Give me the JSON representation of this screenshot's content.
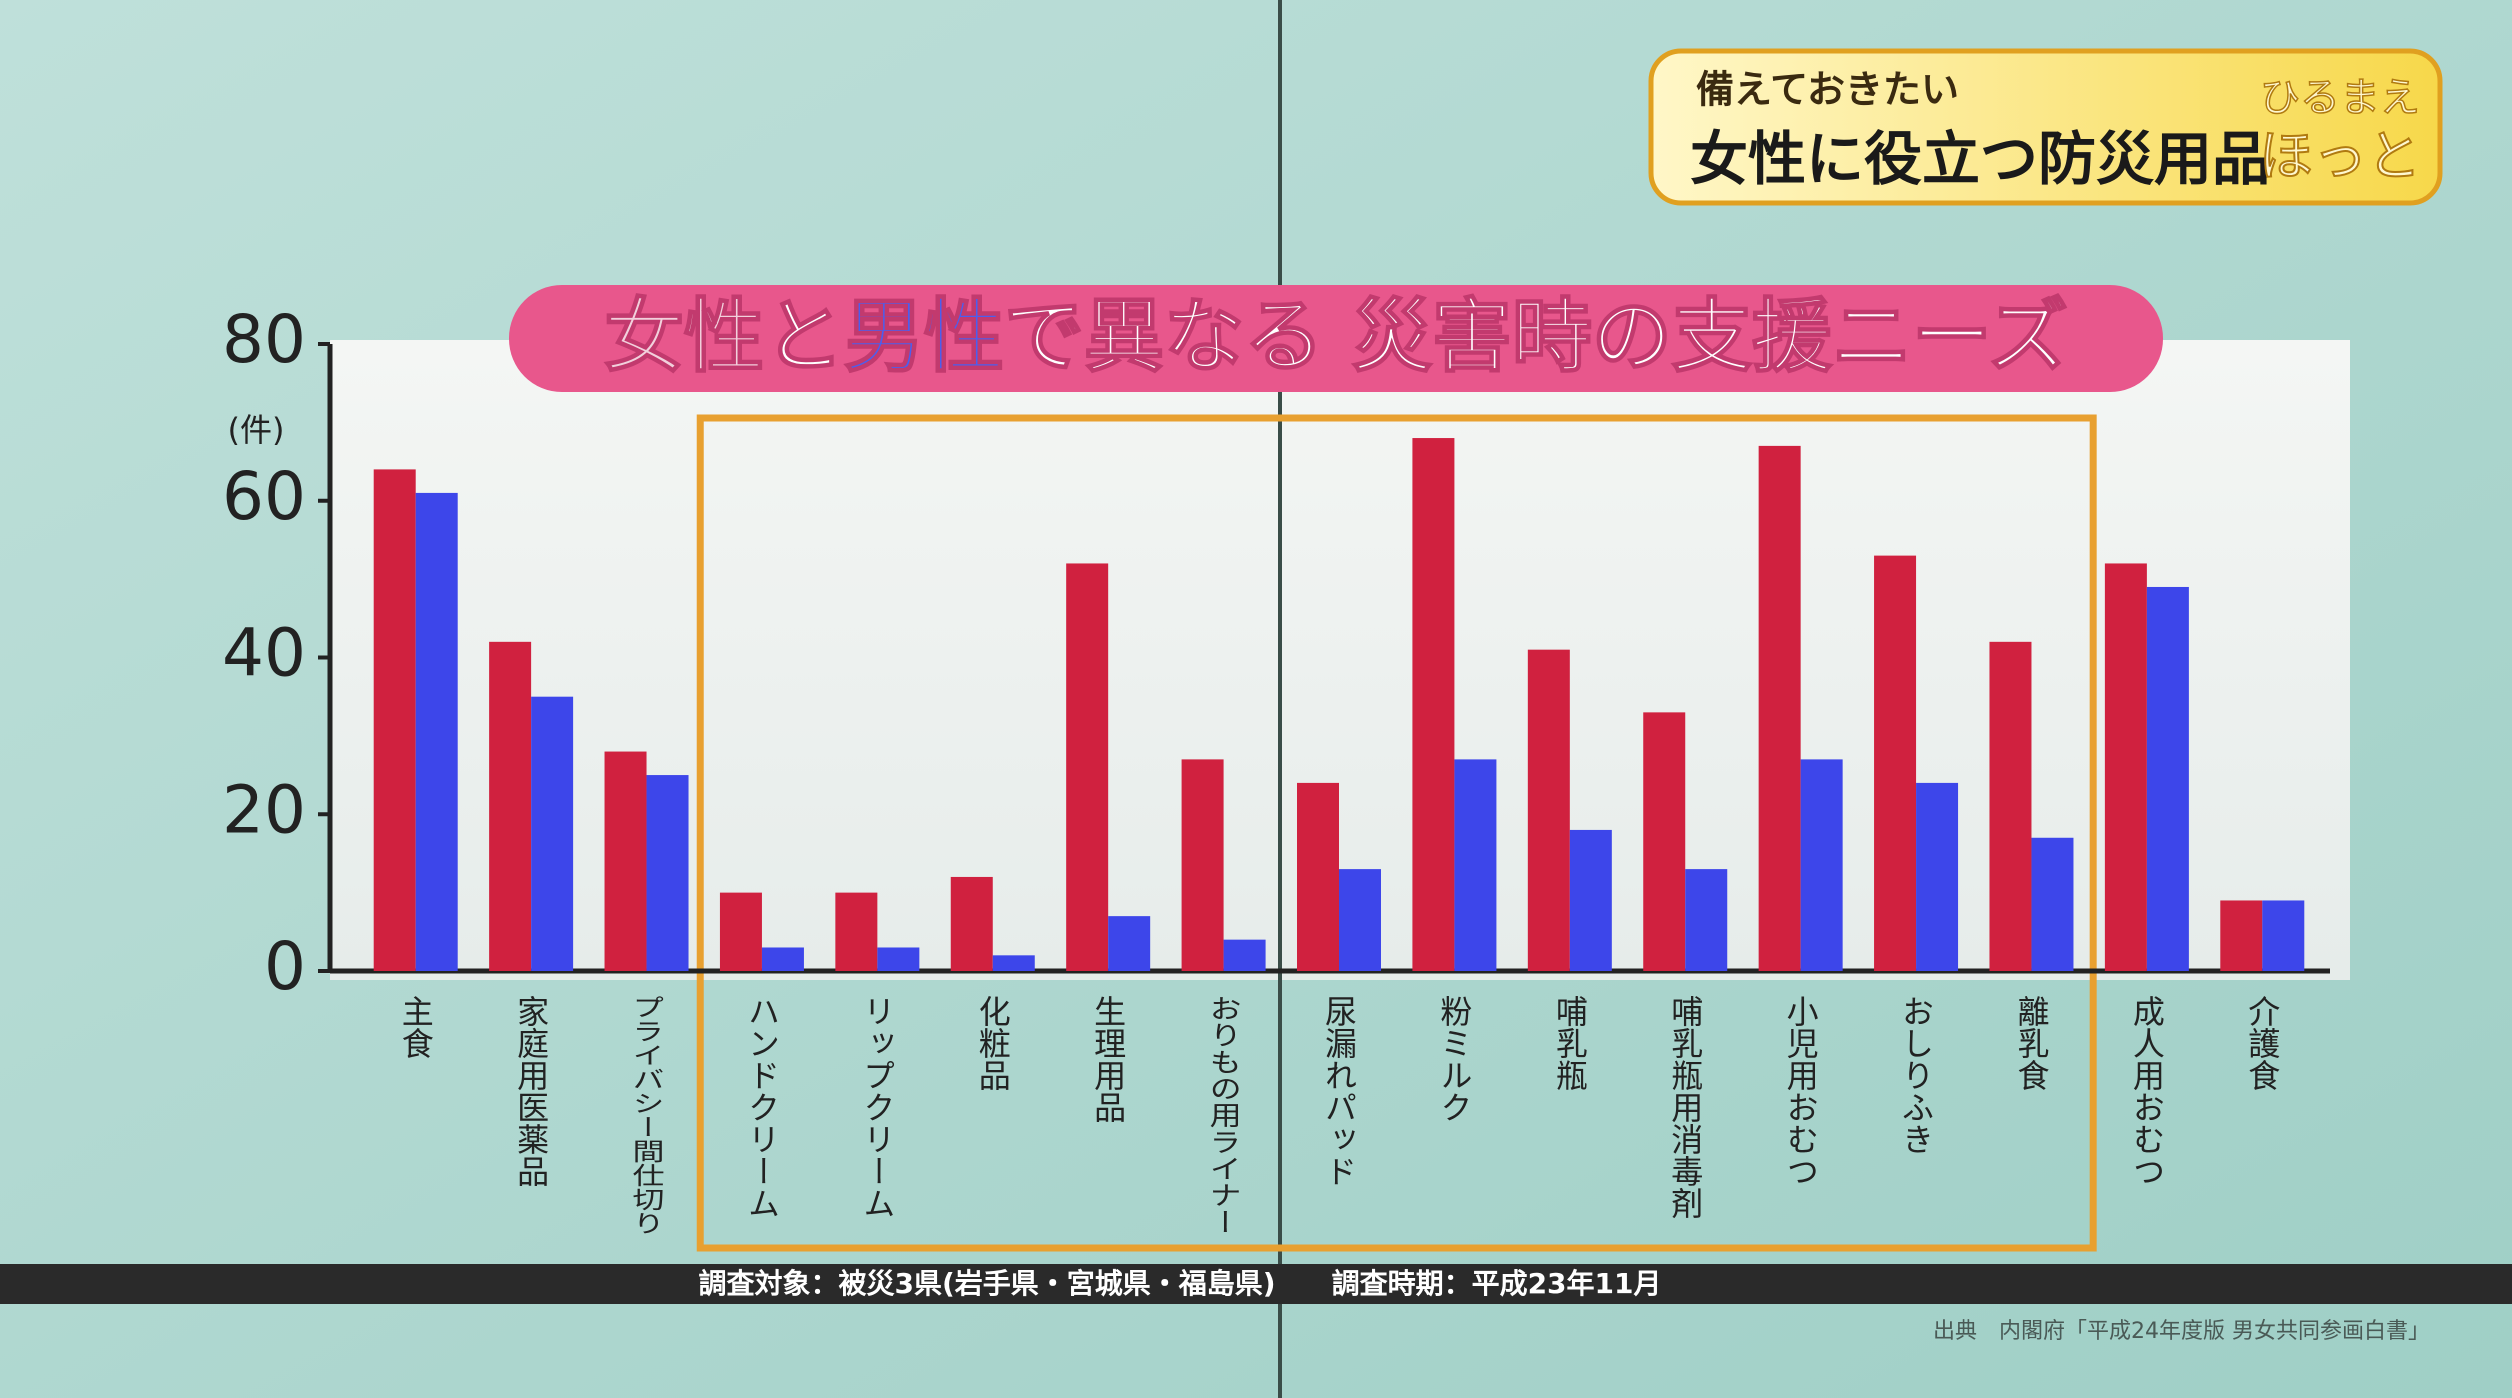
{
  "chart_data": {
    "type": "bar",
    "title": [
      "女性",
      "と",
      "男性",
      "で異なる 災害時の支援ニーズ"
    ],
    "title_colors": [
      "#f2d0dc",
      "#ffffff",
      "#4a5ff0",
      "#ffffff"
    ],
    "y_unit": "(件)",
    "categories": [
      "主食",
      "家庭用医薬品",
      "プライバシー間仕切り",
      "ハンドクリーム",
      "リップクリーム",
      "化粧品",
      "生理用品",
      "おりもの用ライナー",
      "尿漏れパッド",
      "粉ミルク",
      "哺乳瓶",
      "哺乳瓶用消毒剤",
      "小児用おむつ",
      "おしりふき",
      "離乳食",
      "成人用おむつ",
      "介護食"
    ],
    "series": [
      {
        "color": "#d0213f",
        "values": [
          64,
          42,
          28,
          10,
          10,
          12,
          52,
          27,
          24,
          68,
          41,
          33,
          67,
          53,
          42,
          52,
          9
        ]
      },
      {
        "color": "#3d46ea",
        "values": [
          61,
          35,
          25,
          3,
          3,
          2,
          7,
          4,
          13,
          27,
          18,
          13,
          27,
          24,
          17,
          49,
          9
        ]
      }
    ],
    "ylim": [
      0,
      80
    ],
    "yticks": [
      0,
      20,
      40,
      60,
      80
    ],
    "footnote": "調査対象：被災3県(岩手県・宮城県・福島県)　　調査時期：平成23年11月",
    "source": "出典　内閣府「平成24年度版 男女共同参画白書」"
  },
  "banner": {
    "subtitle": "備えておきたい",
    "headline": "女性に役立つ防災用品",
    "logo_top": "ひるまえ",
    "logo_bottom": "ほっと"
  }
}
